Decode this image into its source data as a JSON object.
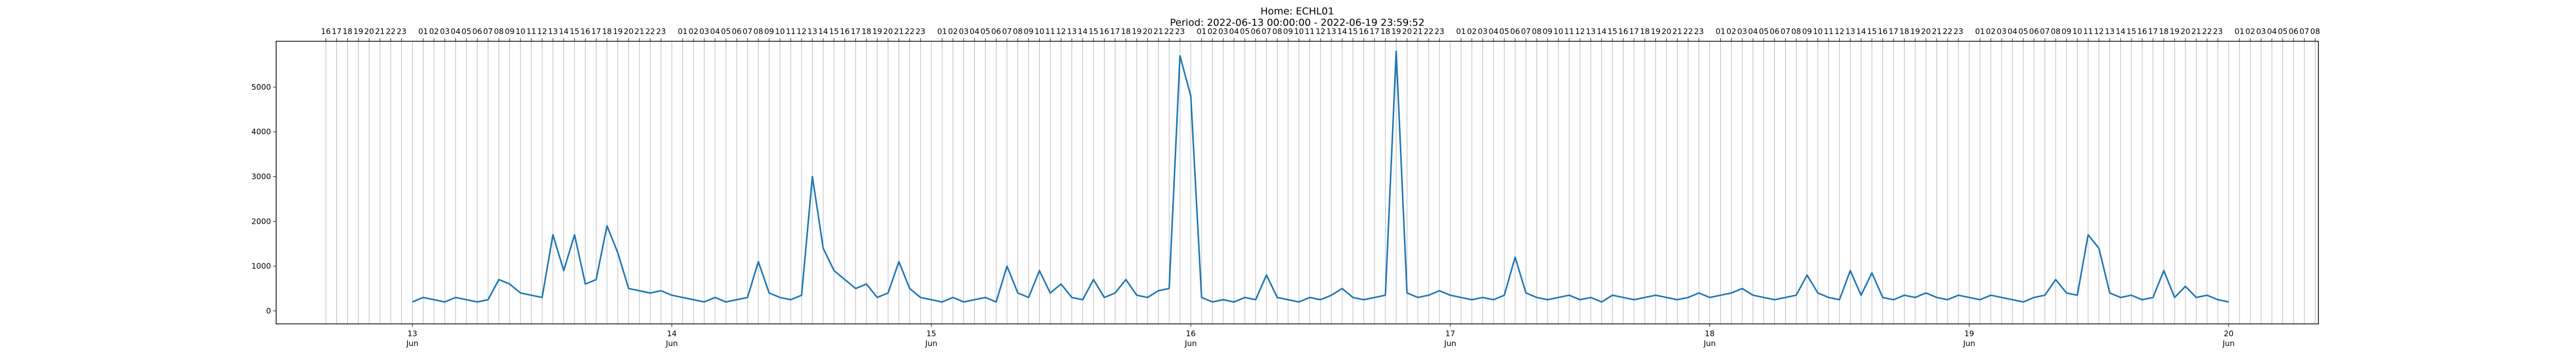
{
  "chart_data": {
    "type": "line",
    "title": "Home: ECHL01",
    "subtitle": "Period: 2022-06-13 00:00:00 - 2022-06-19 23:59:52",
    "color": "#1f77b4",
    "x": [
      0,
      1,
      2,
      3,
      4,
      5,
      6,
      7,
      8,
      9,
      10,
      11,
      12,
      13,
      14,
      15,
      16,
      17,
      18,
      19,
      20,
      21,
      22,
      23,
      24,
      25,
      26,
      27,
      28,
      29,
      30,
      31,
      32,
      33,
      34,
      35,
      36,
      37,
      38,
      39,
      40,
      41,
      42,
      43,
      44,
      45,
      46,
      47,
      48,
      49,
      50,
      51,
      52,
      53,
      54,
      55,
      56,
      57,
      58,
      59,
      60,
      61,
      62,
      63,
      64,
      65,
      66,
      67,
      68,
      69,
      70,
      71,
      72,
      73,
      74,
      75,
      76,
      77,
      78,
      79,
      80,
      81,
      82,
      83,
      84,
      85,
      86,
      87,
      88,
      89,
      90,
      91,
      92,
      93,
      94,
      95,
      96,
      97,
      98,
      99,
      100,
      101,
      102,
      103,
      104,
      105,
      106,
      107,
      108,
      109,
      110,
      111,
      112,
      113,
      114,
      115,
      116,
      117,
      118,
      119,
      120,
      121,
      122,
      123,
      124,
      125,
      126,
      127,
      128,
      129,
      130,
      131,
      132,
      133,
      134,
      135,
      136,
      137,
      138,
      139,
      140,
      141,
      142,
      143,
      144,
      145,
      146,
      147,
      148,
      149,
      150,
      151,
      152,
      153,
      154,
      155,
      156,
      157,
      158,
      159,
      160,
      161,
      162,
      163,
      164,
      165,
      166,
      167,
      168
    ],
    "values": [
      200,
      300,
      250,
      200,
      300,
      250,
      200,
      250,
      700,
      600,
      400,
      350,
      300,
      1700,
      900,
      1700,
      600,
      700,
      1900,
      1300,
      500,
      450,
      400,
      450,
      350,
      300,
      250,
      200,
      300,
      200,
      250,
      300,
      1100,
      400,
      300,
      250,
      350,
      3000,
      1400,
      900,
      700,
      500,
      600,
      300,
      400,
      1100,
      500,
      300,
      250,
      200,
      300,
      200,
      250,
      300,
      200,
      1000,
      400,
      300,
      900,
      400,
      600,
      300,
      250,
      700,
      300,
      400,
      700,
      350,
      300,
      450,
      500,
      5700,
      4800,
      300,
      200,
      250,
      200,
      300,
      250,
      800,
      300,
      250,
      200,
      300,
      250,
      350,
      500,
      300,
      250,
      300,
      350,
      5800,
      400,
      300,
      350,
      450,
      350,
      300,
      250,
      300,
      250,
      350,
      1200,
      400,
      300,
      250,
      300,
      350,
      250,
      300,
      200,
      350,
      300,
      250,
      300,
      350,
      300,
      250,
      300,
      400,
      300,
      350,
      400,
      500,
      350,
      300,
      250,
      300,
      350,
      800,
      400,
      300,
      250,
      900,
      350,
      850,
      300,
      250,
      350,
      300,
      400,
      300,
      250,
      350,
      300,
      250,
      350,
      300,
      250,
      200,
      300,
      350,
      700,
      400,
      350,
      1700,
      1400,
      400,
      300,
      350,
      250,
      300,
      900,
      300,
      550,
      300,
      350,
      250,
      200
    ],
    "xlim": [
      -12.6,
      176.3
    ],
    "ylim": [
      -290,
      6025
    ],
    "yticks": [
      0,
      1000,
      2000,
      3000,
      4000,
      5000
    ],
    "xticks": [
      {
        "value": 0,
        "label": "13\nJun"
      },
      {
        "value": 24,
        "label": "14\nJun"
      },
      {
        "value": 48,
        "label": "15\nJun"
      },
      {
        "value": 72,
        "label": "16\nJun"
      },
      {
        "value": 96,
        "label": "17\nJun"
      },
      {
        "value": 120,
        "label": "18\nJun"
      },
      {
        "value": 144,
        "label": "19\nJun"
      },
      {
        "value": 168,
        "label": "20\nJun"
      }
    ],
    "x2ticks": [
      {
        "value": -8,
        "label": "16"
      },
      {
        "value": -7,
        "label": "17"
      },
      {
        "value": -6,
        "label": "18"
      },
      {
        "value": -5,
        "label": "19"
      },
      {
        "value": -4,
        "label": "20"
      },
      {
        "value": -3,
        "label": "21"
      },
      {
        "value": -2,
        "label": "22"
      },
      {
        "value": -1,
        "label": "23"
      },
      {
        "value": 1,
        "label": "01"
      },
      {
        "value": 2,
        "label": "02"
      },
      {
        "value": 3,
        "label": "03"
      },
      {
        "value": 4,
        "label": "04"
      },
      {
        "value": 5,
        "label": "05"
      },
      {
        "value": 6,
        "label": "06"
      },
      {
        "value": 7,
        "label": "07"
      },
      {
        "value": 8,
        "label": "08"
      },
      {
        "value": 9,
        "label": "09"
      },
      {
        "value": 10,
        "label": "10"
      },
      {
        "value": 11,
        "label": "11"
      },
      {
        "value": 12,
        "label": "12"
      },
      {
        "value": 13,
        "label": "13"
      },
      {
        "value": 14,
        "label": "14"
      },
      {
        "value": 15,
        "label": "15"
      },
      {
        "value": 16,
        "label": "16"
      },
      {
        "value": 17,
        "label": "17"
      },
      {
        "value": 18,
        "label": "18"
      },
      {
        "value": 19,
        "label": "19"
      },
      {
        "value": 20,
        "label": "20"
      },
      {
        "value": 21,
        "label": "21"
      },
      {
        "value": 22,
        "label": "22"
      },
      {
        "value": 23,
        "label": "23"
      },
      {
        "value": 25,
        "label": "01"
      },
      {
        "value": 26,
        "label": "02"
      },
      {
        "value": 27,
        "label": "03"
      },
      {
        "value": 28,
        "label": "04"
      },
      {
        "value": 29,
        "label": "05"
      },
      {
        "value": 30,
        "label": "06"
      },
      {
        "value": 31,
        "label": "07"
      },
      {
        "value": 32,
        "label": "08"
      },
      {
        "value": 33,
        "label": "09"
      },
      {
        "value": 34,
        "label": "10"
      },
      {
        "value": 35,
        "label": "11"
      },
      {
        "value": 36,
        "label": "12"
      },
      {
        "value": 37,
        "label": "13"
      },
      {
        "value": 38,
        "label": "14"
      },
      {
        "value": 39,
        "label": "15"
      },
      {
        "value": 40,
        "label": "16"
      },
      {
        "value": 41,
        "label": "17"
      },
      {
        "value": 42,
        "label": "18"
      },
      {
        "value": 43,
        "label": "19"
      },
      {
        "value": 44,
        "label": "20"
      },
      {
        "value": 45,
        "label": "21"
      },
      {
        "value": 46,
        "label": "22"
      },
      {
        "value": 47,
        "label": "23"
      },
      {
        "value": 49,
        "label": "01"
      },
      {
        "value": 50,
        "label": "02"
      },
      {
        "value": 51,
        "label": "03"
      },
      {
        "value": 52,
        "label": "04"
      },
      {
        "value": 53,
        "label": "05"
      },
      {
        "value": 54,
        "label": "06"
      },
      {
        "value": 55,
        "label": "07"
      },
      {
        "value": 56,
        "label": "08"
      },
      {
        "value": 57,
        "label": "09"
      },
      {
        "value": 58,
        "label": "10"
      },
      {
        "value": 59,
        "label": "11"
      },
      {
        "value": 60,
        "label": "12"
      },
      {
        "value": 61,
        "label": "13"
      },
      {
        "value": 62,
        "label": "14"
      },
      {
        "value": 63,
        "label": "15"
      },
      {
        "value": 64,
        "label": "16"
      },
      {
        "value": 65,
        "label": "17"
      },
      {
        "value": 66,
        "label": "18"
      },
      {
        "value": 67,
        "label": "19"
      },
      {
        "value": 68,
        "label": "20"
      },
      {
        "value": 69,
        "label": "21"
      },
      {
        "value": 70,
        "label": "22"
      },
      {
        "value": 71,
        "label": "23"
      },
      {
        "value": 73,
        "label": "01"
      },
      {
        "value": 74,
        "label": "02"
      },
      {
        "value": 75,
        "label": "03"
      },
      {
        "value": 76,
        "label": "04"
      },
      {
        "value": 77,
        "label": "05"
      },
      {
        "value": 78,
        "label": "06"
      },
      {
        "value": 79,
        "label": "07"
      },
      {
        "value": 80,
        "label": "08"
      },
      {
        "value": 81,
        "label": "09"
      },
      {
        "value": 82,
        "label": "10"
      },
      {
        "value": 83,
        "label": "11"
      },
      {
        "value": 84,
        "label": "12"
      },
      {
        "value": 85,
        "label": "13"
      },
      {
        "value": 86,
        "label": "14"
      },
      {
        "value": 87,
        "label": "15"
      },
      {
        "value": 88,
        "label": "16"
      },
      {
        "value": 89,
        "label": "17"
      },
      {
        "value": 90,
        "label": "18"
      },
      {
        "value": 91,
        "label": "19"
      },
      {
        "value": 92,
        "label": "20"
      },
      {
        "value": 93,
        "label": "21"
      },
      {
        "value": 94,
        "label": "22"
      },
      {
        "value": 95,
        "label": "23"
      },
      {
        "value": 97,
        "label": "01"
      },
      {
        "value": 98,
        "label": "02"
      },
      {
        "value": 99,
        "label": "03"
      },
      {
        "value": 100,
        "label": "04"
      },
      {
        "value": 101,
        "label": "05"
      },
      {
        "value": 102,
        "label": "06"
      },
      {
        "value": 103,
        "label": "07"
      },
      {
        "value": 104,
        "label": "08"
      },
      {
        "value": 105,
        "label": "09"
      },
      {
        "value": 106,
        "label": "10"
      },
      {
        "value": 107,
        "label": "11"
      },
      {
        "value": 108,
        "label": "12"
      },
      {
        "value": 109,
        "label": "13"
      },
      {
        "value": 110,
        "label": "14"
      },
      {
        "value": 111,
        "label": "15"
      },
      {
        "value": 112,
        "label": "16"
      },
      {
        "value": 113,
        "label": "17"
      },
      {
        "value": 114,
        "label": "18"
      },
      {
        "value": 115,
        "label": "19"
      },
      {
        "value": 116,
        "label": "20"
      },
      {
        "value": 117,
        "label": "21"
      },
      {
        "value": 118,
        "label": "22"
      },
      {
        "value": 119,
        "label": "23"
      },
      {
        "value": 121,
        "label": "01"
      },
      {
        "value": 122,
        "label": "02"
      },
      {
        "value": 123,
        "label": "03"
      },
      {
        "value": 124,
        "label": "04"
      },
      {
        "value": 125,
        "label": "05"
      },
      {
        "value": 126,
        "label": "06"
      },
      {
        "value": 127,
        "label": "07"
      },
      {
        "value": 128,
        "label": "08"
      },
      {
        "value": 129,
        "label": "09"
      },
      {
        "value": 130,
        "label": "10"
      },
      {
        "value": 131,
        "label": "11"
      },
      {
        "value": 132,
        "label": "12"
      },
      {
        "value": 133,
        "label": "13"
      },
      {
        "value": 134,
        "label": "14"
      },
      {
        "value": 135,
        "label": "15"
      },
      {
        "value": 136,
        "label": "16"
      },
      {
        "value": 137,
        "label": "17"
      },
      {
        "value": 138,
        "label": "18"
      },
      {
        "value": 139,
        "label": "19"
      },
      {
        "value": 140,
        "label": "20"
      },
      {
        "value": 141,
        "label": "21"
      },
      {
        "value": 142,
        "label": "22"
      },
      {
        "value": 143,
        "label": "23"
      },
      {
        "value": 145,
        "label": "01"
      },
      {
        "value": 146,
        "label": "02"
      },
      {
        "value": 147,
        "label": "03"
      },
      {
        "value": 148,
        "label": "04"
      },
      {
        "value": 149,
        "label": "05"
      },
      {
        "value": 150,
        "label": "06"
      },
      {
        "value": 151,
        "label": "07"
      },
      {
        "value": 152,
        "label": "08"
      },
      {
        "value": 153,
        "label": "09"
      },
      {
        "value": 154,
        "label": "10"
      },
      {
        "value": 155,
        "label": "11"
      },
      {
        "value": 156,
        "label": "12"
      },
      {
        "value": 157,
        "label": "13"
      },
      {
        "value": 158,
        "label": "14"
      },
      {
        "value": 159,
        "label": "15"
      },
      {
        "value": 160,
        "label": "16"
      },
      {
        "value": 161,
        "label": "17"
      },
      {
        "value": 162,
        "label": "18"
      },
      {
        "value": 163,
        "label": "19"
      },
      {
        "value": 164,
        "label": "20"
      },
      {
        "value": 165,
        "label": "21"
      },
      {
        "value": 166,
        "label": "22"
      },
      {
        "value": 167,
        "label": "23"
      },
      {
        "value": 169,
        "label": "01"
      },
      {
        "value": 170,
        "label": "02"
      },
      {
        "value": 171,
        "label": "03"
      },
      {
        "value": 172,
        "label": "04"
      },
      {
        "value": 173,
        "label": "05"
      },
      {
        "value": 174,
        "label": "06"
      },
      {
        "value": 175,
        "label": "07"
      },
      {
        "value": 176,
        "label": "08"
      }
    ],
    "grid": true
  }
}
